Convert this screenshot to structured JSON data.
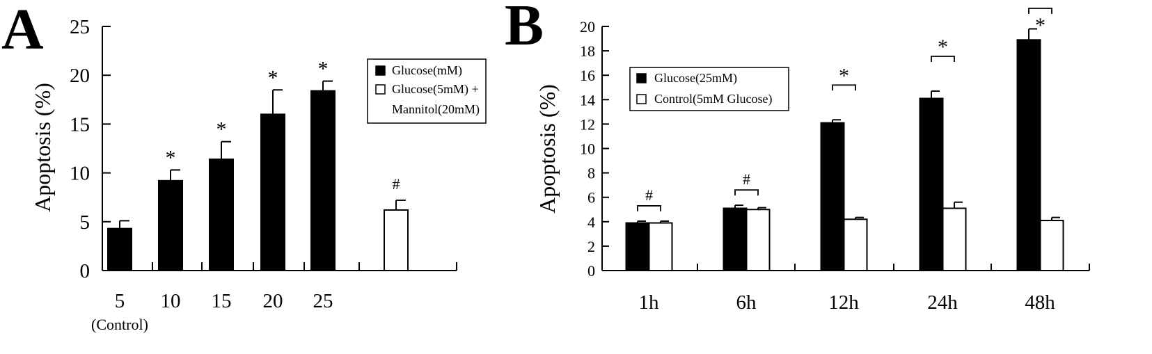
{
  "chart_data": [
    {
      "panel": "A",
      "type": "bar",
      "ylabel": "Apoptosis (%)",
      "ylim": [
        0,
        25
      ],
      "yticks": [
        "0",
        "5",
        "10",
        "15",
        "20",
        "25"
      ],
      "categories": [
        "5",
        "10",
        "15",
        "20",
        "25",
        ""
      ],
      "category_sublabel": "(Control)",
      "series": [
        {
          "name": "Glucose(mM)",
          "fill": "#000000",
          "values": [
            4.3,
            9.2,
            11.4,
            16.0,
            18.4,
            null
          ],
          "errors": [
            0.8,
            1.1,
            1.8,
            2.5,
            1.0,
            null
          ],
          "marks": [
            "",
            "*",
            "*",
            "*",
            "*",
            ""
          ]
        },
        {
          "name": "Glucose(5mM) +",
          "name_line2": "Mannitol(20mM)",
          "fill": "#ffffff",
          "values": [
            null,
            null,
            null,
            null,
            null,
            6.2
          ],
          "errors": [
            null,
            null,
            null,
            null,
            null,
            1.0
          ],
          "marks": [
            "",
            "",
            "",
            "",
            "",
            "#"
          ]
        }
      ],
      "legend_position": "top-right"
    },
    {
      "panel": "B",
      "type": "bar",
      "ylabel": "Apoptosis (%)",
      "ylim": [
        0,
        20
      ],
      "yticks": [
        "0",
        "2",
        "4",
        "6",
        "8",
        "10",
        "12",
        "14",
        "16",
        "18",
        "20"
      ],
      "categories": [
        "1h",
        "6h",
        "12h",
        "24h",
        "48h"
      ],
      "series": [
        {
          "name": "Glucose(25mM)",
          "fill": "#000000",
          "values": [
            3.9,
            5.1,
            12.1,
            14.1,
            18.9
          ],
          "errors": [
            0.15,
            0.25,
            0.25,
            0.6,
            0.9
          ]
        },
        {
          "name": "Control(5mM Glucose)",
          "fill": "#ffffff",
          "values": [
            3.9,
            5.0,
            4.2,
            5.1,
            4.1
          ],
          "errors": [
            0.15,
            0.15,
            0.15,
            0.5,
            0.25
          ]
        }
      ],
      "brackets": [
        "#",
        "#",
        "*",
        "*",
        "*"
      ],
      "legend_position": "top-left"
    }
  ]
}
